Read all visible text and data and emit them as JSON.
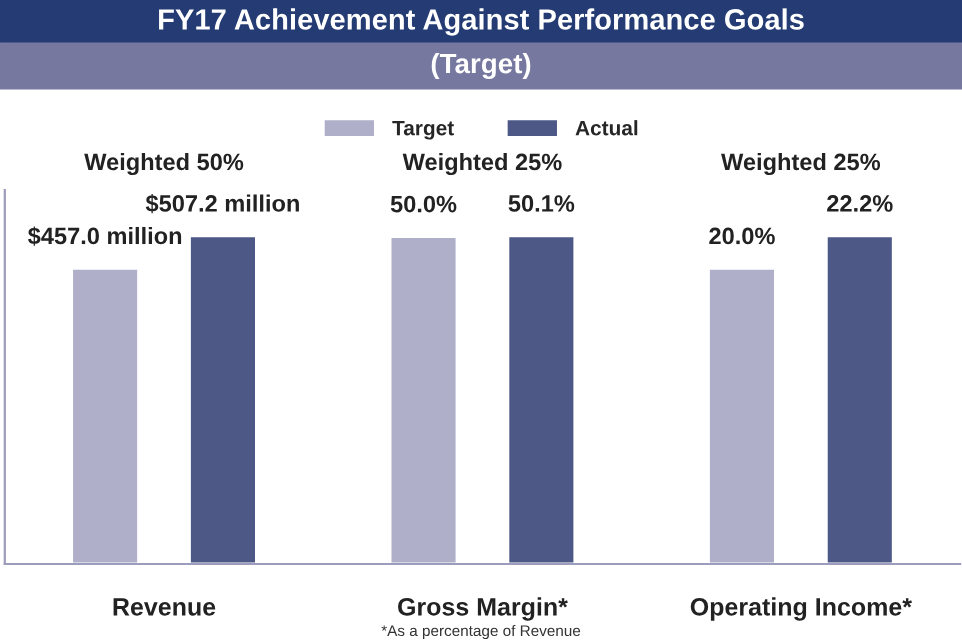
{
  "chart_data": [
    {
      "type": "bar",
      "annotations": [
        "Weighted 50%"
      ],
      "categories": [
        "Revenue"
      ],
      "series": [
        {
          "name": "Target",
          "color": "#afafc9",
          "values": [
            457.0
          ],
          "value_labels": [
            "$457.0 million"
          ]
        },
        {
          "name": "Actual",
          "color": "#4d5887",
          "values": [
            507.2
          ],
          "value_labels": [
            "$507.2 million"
          ]
        }
      ],
      "legend": "top"
    },
    {
      "type": "bar",
      "title": "FY17 Achievement Against Performance Goals",
      "subtitle": "(Target)",
      "annotations": [
        "Weighted 25%",
        "*As a percentage of Revenue"
      ],
      "categories": [
        "Gross Margin*"
      ],
      "series": [
        {
          "color": "#afafc9",
          "values": [
            50.0
          ],
          "value_labels": [
            "50.0%"
          ]
        },
        {
          "color": "#4d5887",
          "values": [
            50.1
          ],
          "value_labels": [
            "50.1%"
          ]
        }
      ]
    },
    {
      "type": "bar",
      "annotations": [
        "Weighted 25%"
      ],
      "categories": [
        "Operating Income*"
      ],
      "series": [
        {
          "color": "#afafc9",
          "values": [
            20.0
          ],
          "value_labels": [
            "20.0%"
          ]
        },
        {
          "color": "#4d5887",
          "values": [
            22.2
          ],
          "value_labels": [
            "22.2%"
          ]
        }
      ]
    }
  ]
}
